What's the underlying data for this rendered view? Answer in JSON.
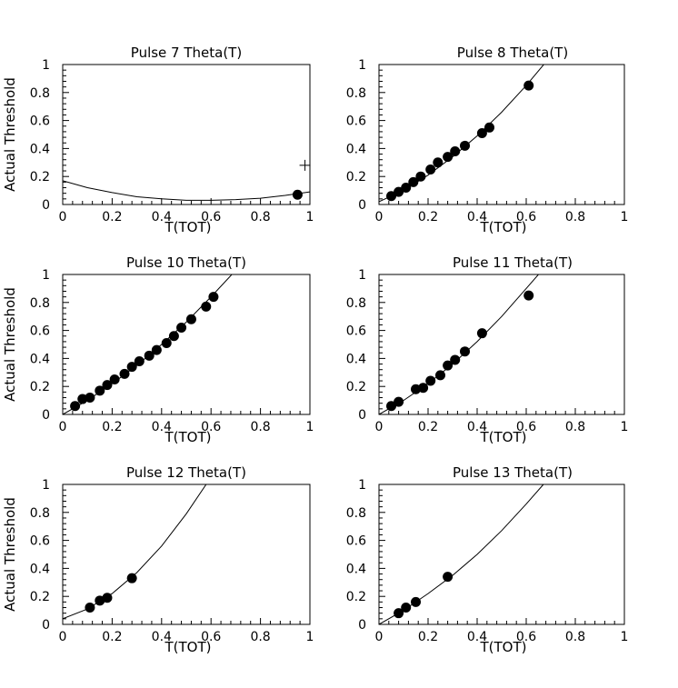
{
  "chart_data": [
    {
      "type": "scatter",
      "title": "Pulse 7 Theta(T)",
      "xlabel": "T(TOT)",
      "ylabel": "Actual Threshold",
      "xlim": [
        0,
        1
      ],
      "ylim": [
        0,
        1
      ],
      "xticks": [
        "0",
        "0.2",
        "0.4",
        "0.6",
        "0.8",
        "1"
      ],
      "yticks": [
        "0",
        "0.2",
        "0.4",
        "0.6",
        "0.8",
        "1"
      ],
      "points": [
        [
          0.95,
          0.07
        ]
      ],
      "markers": [
        {
          "shape": "cross",
          "x": 0.98,
          "y": 0.28
        }
      ],
      "fit_curve": [
        [
          0,
          0.17
        ],
        [
          0.1,
          0.12
        ],
        [
          0.2,
          0.085
        ],
        [
          0.3,
          0.055
        ],
        [
          0.4,
          0.04
        ],
        [
          0.5,
          0.03
        ],
        [
          0.6,
          0.03
        ],
        [
          0.7,
          0.035
        ],
        [
          0.8,
          0.045
        ],
        [
          0.9,
          0.065
        ],
        [
          1.0,
          0.09
        ]
      ]
    },
    {
      "type": "scatter",
      "title": "Pulse 8 Theta(T)",
      "xlabel": "T(TOT)",
      "ylabel": "",
      "xlim": [
        0,
        1
      ],
      "ylim": [
        0,
        1
      ],
      "xticks": [
        "0",
        "0.2",
        "0.4",
        "0.6",
        "0.8",
        "1"
      ],
      "yticks": [
        "0",
        "0.2",
        "0.4",
        "0.6",
        "0.8",
        "1"
      ],
      "points": [
        [
          0.05,
          0.06
        ],
        [
          0.08,
          0.09
        ],
        [
          0.11,
          0.12
        ],
        [
          0.14,
          0.16
        ],
        [
          0.17,
          0.2
        ],
        [
          0.21,
          0.25
        ],
        [
          0.24,
          0.3
        ],
        [
          0.28,
          0.34
        ],
        [
          0.31,
          0.38
        ],
        [
          0.35,
          0.42
        ],
        [
          0.42,
          0.51
        ],
        [
          0.45,
          0.55
        ],
        [
          0.61,
          0.85
        ]
      ],
      "fit_curve": [
        [
          0,
          0.02
        ],
        [
          0.1,
          0.1
        ],
        [
          0.2,
          0.21
        ],
        [
          0.3,
          0.34
        ],
        [
          0.4,
          0.49
        ],
        [
          0.5,
          0.66
        ],
        [
          0.6,
          0.85
        ],
        [
          0.7,
          1.06
        ]
      ]
    },
    {
      "type": "scatter",
      "title": "Pulse 10 Theta(T)",
      "xlabel": "T(TOT)",
      "ylabel": "Actual Threshold",
      "xlim": [
        0,
        1
      ],
      "ylim": [
        0,
        1
      ],
      "xticks": [
        "0",
        "0.2",
        "0.4",
        "0.6",
        "0.8",
        "1"
      ],
      "yticks": [
        "0",
        "0.2",
        "0.4",
        "0.6",
        "0.8",
        "1"
      ],
      "points": [
        [
          0.05,
          0.06
        ],
        [
          0.08,
          0.11
        ],
        [
          0.11,
          0.12
        ],
        [
          0.15,
          0.17
        ],
        [
          0.18,
          0.21
        ],
        [
          0.21,
          0.25
        ],
        [
          0.25,
          0.29
        ],
        [
          0.28,
          0.34
        ],
        [
          0.31,
          0.38
        ],
        [
          0.35,
          0.42
        ],
        [
          0.38,
          0.46
        ],
        [
          0.42,
          0.51
        ],
        [
          0.45,
          0.56
        ],
        [
          0.48,
          0.62
        ],
        [
          0.52,
          0.68
        ],
        [
          0.58,
          0.77
        ],
        [
          0.61,
          0.84
        ]
      ],
      "fit_curve": [
        [
          0,
          0.0
        ],
        [
          0.1,
          0.1
        ],
        [
          0.2,
          0.22
        ],
        [
          0.3,
          0.35
        ],
        [
          0.4,
          0.5
        ],
        [
          0.5,
          0.66
        ],
        [
          0.6,
          0.84
        ],
        [
          0.7,
          1.03
        ]
      ]
    },
    {
      "type": "scatter",
      "title": "Pulse 11 Theta(T)",
      "xlabel": "T(TOT)",
      "ylabel": "",
      "xlim": [
        0,
        1
      ],
      "ylim": [
        0,
        1
      ],
      "xticks": [
        "0",
        "0.2",
        "0.4",
        "0.6",
        "0.8",
        "1"
      ],
      "yticks": [
        "0",
        "0.2",
        "0.4",
        "0.6",
        "0.8",
        "1"
      ],
      "points": [
        [
          0.05,
          0.06
        ],
        [
          0.08,
          0.09
        ],
        [
          0.15,
          0.18
        ],
        [
          0.18,
          0.19
        ],
        [
          0.21,
          0.24
        ],
        [
          0.25,
          0.28
        ],
        [
          0.28,
          0.35
        ],
        [
          0.31,
          0.39
        ],
        [
          0.35,
          0.45
        ],
        [
          0.42,
          0.58
        ],
        [
          0.61,
          0.85
        ]
      ],
      "fit_curve": [
        [
          0,
          0.0
        ],
        [
          0.1,
          0.1
        ],
        [
          0.2,
          0.22
        ],
        [
          0.3,
          0.36
        ],
        [
          0.4,
          0.52
        ],
        [
          0.5,
          0.7
        ],
        [
          0.6,
          0.9
        ],
        [
          0.66,
          1.02
        ]
      ]
    },
    {
      "type": "scatter",
      "title": "Pulse 12 Theta(T)",
      "xlabel": "T(TOT)",
      "ylabel": "Actual Threshold",
      "xlim": [
        0,
        1
      ],
      "ylim": [
        0,
        1
      ],
      "xticks": [
        "0",
        "0.2",
        "0.4",
        "0.6",
        "0.8",
        "1"
      ],
      "yticks": [
        "0",
        "0.2",
        "0.4",
        "0.6",
        "0.8",
        "1"
      ],
      "points": [
        [
          0.11,
          0.12
        ],
        [
          0.15,
          0.17
        ],
        [
          0.18,
          0.19
        ],
        [
          0.28,
          0.33
        ]
      ],
      "fit_curve": [
        [
          0,
          0.04
        ],
        [
          0.1,
          0.11
        ],
        [
          0.2,
          0.22
        ],
        [
          0.3,
          0.37
        ],
        [
          0.4,
          0.56
        ],
        [
          0.5,
          0.79
        ],
        [
          0.58,
          1.0
        ]
      ]
    },
    {
      "type": "scatter",
      "title": "Pulse 13 Theta(T)",
      "xlabel": "T(TOT)",
      "ylabel": "",
      "xlim": [
        0,
        1
      ],
      "ylim": [
        0,
        1
      ],
      "xticks": [
        "0",
        "0.2",
        "0.4",
        "0.6",
        "0.8",
        "1"
      ],
      "yticks": [
        "0",
        "0.2",
        "0.4",
        "0.6",
        "0.8",
        "1"
      ],
      "points": [
        [
          0.08,
          0.08
        ],
        [
          0.11,
          0.12
        ],
        [
          0.15,
          0.16
        ],
        [
          0.28,
          0.34
        ]
      ],
      "fit_curve": [
        [
          0,
          0.0
        ],
        [
          0.1,
          0.1
        ],
        [
          0.2,
          0.22
        ],
        [
          0.3,
          0.35
        ],
        [
          0.4,
          0.5
        ],
        [
          0.5,
          0.67
        ],
        [
          0.6,
          0.86
        ],
        [
          0.67,
          1.0
        ]
      ]
    }
  ]
}
